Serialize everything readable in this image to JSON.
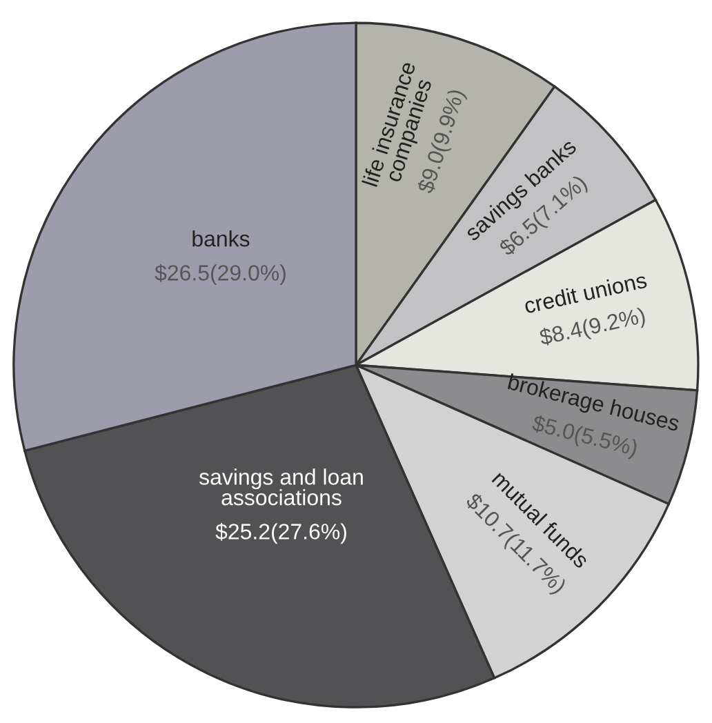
{
  "chart_data": {
    "type": "pie",
    "categories": [
      "life insurance\ncompanies",
      "savings banks",
      "credit unions",
      "brokerage houses",
      "mutual funds",
      "savings and loan\nassociations",
      "banks"
    ],
    "values": [
      9.0,
      6.5,
      8.4,
      5.0,
      10.7,
      25.2,
      26.5
    ],
    "value_labels": [
      "$9.0(9.9%)",
      "$6.5(7.1%)",
      "$8.4(9.2%)",
      "$5.0(5.5%)",
      "$10.7(11.7%)",
      "$25.2(27.6%)",
      "$26.5(29.0%)"
    ],
    "colors": [
      "#b4b4ac",
      "#c2c2c4",
      "#e6e6e0",
      "#8c8c8e",
      "#d2d2d2",
      "#525254",
      "#9c9cac"
    ],
    "legend": false
  }
}
